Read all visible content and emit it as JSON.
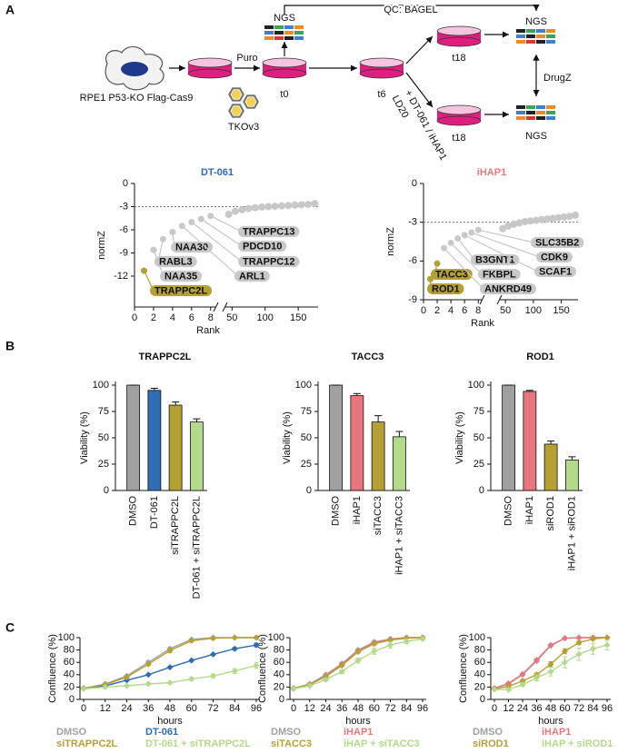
{
  "figure": {
    "panel_labels": [
      "A",
      "B",
      "C"
    ]
  },
  "schematic": {
    "cell_line": "RPE1 P53-KO Flag-Cas9",
    "selection": "Puro",
    "library": "TKOv3",
    "timepoints": [
      "t0",
      "t6",
      "t18",
      "t18"
    ],
    "sequencing": [
      "NGS",
      "NGS",
      "NGS"
    ],
    "qc": "QC: BAGEL",
    "analysis": "DrugZ",
    "treatment": "+ DT-061 / iHAP1",
    "dose": "LD20"
  },
  "chart_data": [
    {
      "type": "rank",
      "title": "DT-061",
      "title_color": "#2e6db5",
      "xlabel": "Rank",
      "ylabel": "normZ",
      "xlim": [
        0,
        180
      ],
      "xbreak": [
        8.5,
        40
      ],
      "xticks": [
        0,
        2,
        4,
        6,
        8,
        50,
        100,
        150
      ],
      "ylim": [
        -16,
        0
      ],
      "yticks": [
        0,
        -3,
        -6,
        -9,
        -12
      ],
      "threshold": -3,
      "color": "#c8c8c8",
      "highlight_color": "#b5a033",
      "hits": {
        "labels": [
          "TRAPPC2L",
          "NAA35",
          "RABL3",
          "NAA30",
          "ARL1",
          "TRAPPC12",
          "PDCD10",
          "TRAPPC13"
        ],
        "x": [
          1,
          2,
          3,
          4,
          5,
          6,
          7,
          8
        ],
        "values": [
          -11.3,
          -8.6,
          -7.2,
          -6.3,
          -5.5,
          -5.0,
          -4.6,
          -4.2
        ],
        "highlight": [
          true,
          false,
          false,
          false,
          false,
          false,
          false,
          false
        ]
      },
      "background": {
        "x": [
          45,
          55,
          65,
          75,
          85,
          95,
          105,
          115,
          125,
          135,
          145,
          155,
          165,
          175
        ],
        "values": [
          -4.0,
          -3.6,
          -3.4,
          -3.25,
          -3.15,
          -3.05,
          -3.0,
          -2.95,
          -2.9,
          -2.85,
          -2.8,
          -2.75,
          -2.7,
          -2.6
        ]
      }
    },
    {
      "type": "rank",
      "title": "iHAP1",
      "title_color": "#e8767e",
      "xlabel": "Rank",
      "ylabel": "normZ",
      "xlim": [
        0,
        180
      ],
      "xbreak": [
        8.5,
        40
      ],
      "xticks": [
        0,
        2,
        4,
        6,
        8,
        50,
        100,
        150
      ],
      "ylim": [
        -9,
        0
      ],
      "yticks": [
        0,
        -3,
        -6,
        -9
      ],
      "threshold": -3,
      "color": "#c8c8c8",
      "highlight_color": "#b5a033",
      "hits": {
        "labels": [
          "ROD1",
          "TACC3",
          "ANKRD49",
          "FKBPL",
          "B3GNT1",
          "SCAF1",
          "CDK9",
          "SLC35B2"
        ],
        "x": [
          1,
          2,
          3,
          4,
          5,
          6,
          7,
          8
        ],
        "values": [
          -7.4,
          -6.2,
          -5.0,
          -4.6,
          -4.25,
          -4.0,
          -3.8,
          -3.6
        ],
        "highlight": [
          true,
          true,
          false,
          false,
          false,
          false,
          false,
          false
        ]
      },
      "background": {
        "x": [
          45,
          55,
          65,
          75,
          85,
          95,
          105,
          115,
          125,
          135,
          145,
          155,
          165,
          175
        ],
        "values": [
          -3.5,
          -3.3,
          -3.15,
          -3.05,
          -2.95,
          -2.9,
          -2.85,
          -2.8,
          -2.75,
          -2.7,
          -2.65,
          -2.6,
          -2.55,
          -2.45
        ]
      }
    },
    {
      "type": "bar",
      "title": "TRAPPC2L",
      "ylabel": "Viability (%)",
      "categories": [
        "DMSO",
        "DT-061",
        "siTRAPPC2L",
        "DT-061 + siTRAPPC2L"
      ],
      "values": [
        100,
        95,
        81,
        65
      ],
      "errors": [
        0,
        2,
        3,
        3
      ],
      "colors": [
        "#a0a0a0",
        "#2e6db5",
        "#b5a033",
        "#b3d98a"
      ],
      "ylim": [
        0,
        100
      ],
      "yticks": [
        0,
        25,
        50,
        75,
        100
      ]
    },
    {
      "type": "bar",
      "title": "TACC3",
      "ylabel": "Viability (%)",
      "categories": [
        "DMSO",
        "iHAP1",
        "siTACC3",
        "iHAP1 + siTACC3"
      ],
      "values": [
        100,
        90,
        65,
        51
      ],
      "errors": [
        0,
        2,
        6,
        5
      ],
      "colors": [
        "#a0a0a0",
        "#e8767e",
        "#b5a033",
        "#b3d98a"
      ],
      "ylim": [
        0,
        100
      ],
      "yticks": [
        0,
        25,
        50,
        75,
        100
      ]
    },
    {
      "type": "bar",
      "title": "ROD1",
      "ylabel": "Viability (%)",
      "categories": [
        "DMSO",
        "iHAP1",
        "siROD1",
        "iHAP1 + siROD1"
      ],
      "values": [
        100,
        94,
        44,
        29
      ],
      "errors": [
        0,
        1,
        3,
        3
      ],
      "colors": [
        "#a0a0a0",
        "#e8767e",
        "#b5a033",
        "#b3d98a"
      ],
      "ylim": [
        0,
        100
      ],
      "yticks": [
        0,
        25,
        50,
        75,
        100
      ]
    },
    {
      "type": "line",
      "xlabel": "hours",
      "ylabel": "Confluence (%)",
      "x": [
        0,
        12,
        24,
        36,
        48,
        60,
        72,
        84,
        96
      ],
      "xlim": [
        0,
        96
      ],
      "xticks": [
        0,
        12,
        24,
        36,
        48,
        60,
        72,
        84,
        96
      ],
      "ylim": [
        0,
        100
      ],
      "yticks": [
        0,
        20,
        40,
        60,
        80,
        100
      ],
      "series": [
        {
          "name": "DMSO",
          "color": "#a0a0a0",
          "values": [
            18,
            25,
            38,
            60,
            82,
            97,
            100,
            100,
            100
          ],
          "errors": [
            1,
            1,
            1,
            2,
            2,
            1,
            1,
            1,
            1
          ]
        },
        {
          "name": "DT-061",
          "color": "#2e6db5",
          "values": [
            18,
            22,
            31,
            40,
            52,
            63,
            73,
            82,
            88
          ],
          "errors": [
            1,
            1,
            1,
            1,
            1,
            1,
            1,
            2,
            3
          ]
        },
        {
          "name": "siTRAPPC2L",
          "color": "#b5a033",
          "values": [
            18,
            24,
            36,
            57,
            79,
            95,
            99,
            100,
            100
          ],
          "errors": [
            1,
            1,
            1,
            2,
            3,
            2,
            2,
            1,
            1
          ]
        },
        {
          "name": "DT-061 + siTRAPPC2L",
          "color": "#b3d98a",
          "values": [
            17,
            20,
            22,
            25,
            27,
            33,
            38,
            46,
            55
          ],
          "errors": [
            1,
            1,
            1,
            1,
            1,
            2,
            3,
            4,
            5
          ]
        }
      ]
    },
    {
      "type": "line",
      "xlabel": "hours",
      "ylabel": "Confluence (%)",
      "x": [
        0,
        12,
        24,
        36,
        48,
        60,
        72,
        84,
        96
      ],
      "xlim": [
        0,
        96
      ],
      "xticks": [
        0,
        12,
        24,
        36,
        48,
        60,
        72,
        84,
        96
      ],
      "ylim": [
        0,
        100
      ],
      "yticks": [
        0,
        20,
        40,
        60,
        80,
        100
      ],
      "series": [
        {
          "name": "DMSO",
          "color": "#a0a0a0",
          "values": [
            18,
            25,
            40,
            58,
            80,
            93,
            98,
            100,
            100
          ],
          "errors": [
            1,
            1,
            1,
            2,
            2,
            2,
            1,
            1,
            1
          ]
        },
        {
          "name": "iHAP1",
          "color": "#e8767e",
          "values": [
            18,
            24,
            38,
            57,
            78,
            92,
            97,
            100,
            100
          ],
          "errors": [
            1,
            1,
            1,
            2,
            2,
            2,
            1,
            1,
            1
          ]
        },
        {
          "name": "siTACC3",
          "color": "#b5a033",
          "values": [
            18,
            24,
            37,
            55,
            77,
            90,
            96,
            99,
            100
          ],
          "errors": [
            1,
            1,
            1,
            2,
            2,
            2,
            1,
            1,
            1
          ]
        },
        {
          "name": "iHAP + siTACC3",
          "color": "#b3d98a",
          "values": [
            17,
            22,
            32,
            45,
            63,
            78,
            88,
            94,
            98
          ],
          "errors": [
            1,
            1,
            2,
            3,
            4,
            5,
            5,
            4,
            2
          ]
        }
      ]
    },
    {
      "type": "line",
      "xlabel": "hours",
      "ylabel": "Confluence (%)",
      "x": [
        0,
        12,
        24,
        36,
        48,
        60,
        72,
        84,
        96
      ],
      "xlim": [
        0,
        96
      ],
      "xticks": [
        0,
        12,
        24,
        36,
        48,
        60,
        72,
        84,
        96
      ],
      "ylim": [
        0,
        100
      ],
      "yticks": [
        0,
        20,
        40,
        60,
        80,
        100
      ],
      "series": [
        {
          "name": "DMSO",
          "color": "#a0a0a0",
          "values": [
            18,
            25,
            40,
            62,
            87,
            99,
            100,
            100,
            100
          ],
          "errors": [
            1,
            1,
            1,
            1,
            1,
            1,
            1,
            1,
            1
          ]
        },
        {
          "name": "iHAP1",
          "color": "#e8767e",
          "values": [
            18,
            26,
            41,
            64,
            88,
            99,
            100,
            100,
            100
          ],
          "errors": [
            1,
            1,
            1,
            1,
            1,
            1,
            1,
            1,
            1
          ]
        },
        {
          "name": "siROD1",
          "color": "#b5a033",
          "values": [
            17,
            21,
            30,
            40,
            57,
            78,
            92,
            98,
            100
          ],
          "errors": [
            1,
            1,
            2,
            3,
            4,
            4,
            3,
            2,
            1
          ]
        },
        {
          "name": "iHAP + siROD1",
          "color": "#b3d98a",
          "values": [
            16,
            16,
            24,
            35,
            45,
            60,
            73,
            82,
            88
          ],
          "errors": [
            1,
            2,
            3,
            5,
            7,
            9,
            10,
            9,
            8
          ]
        }
      ]
    }
  ]
}
